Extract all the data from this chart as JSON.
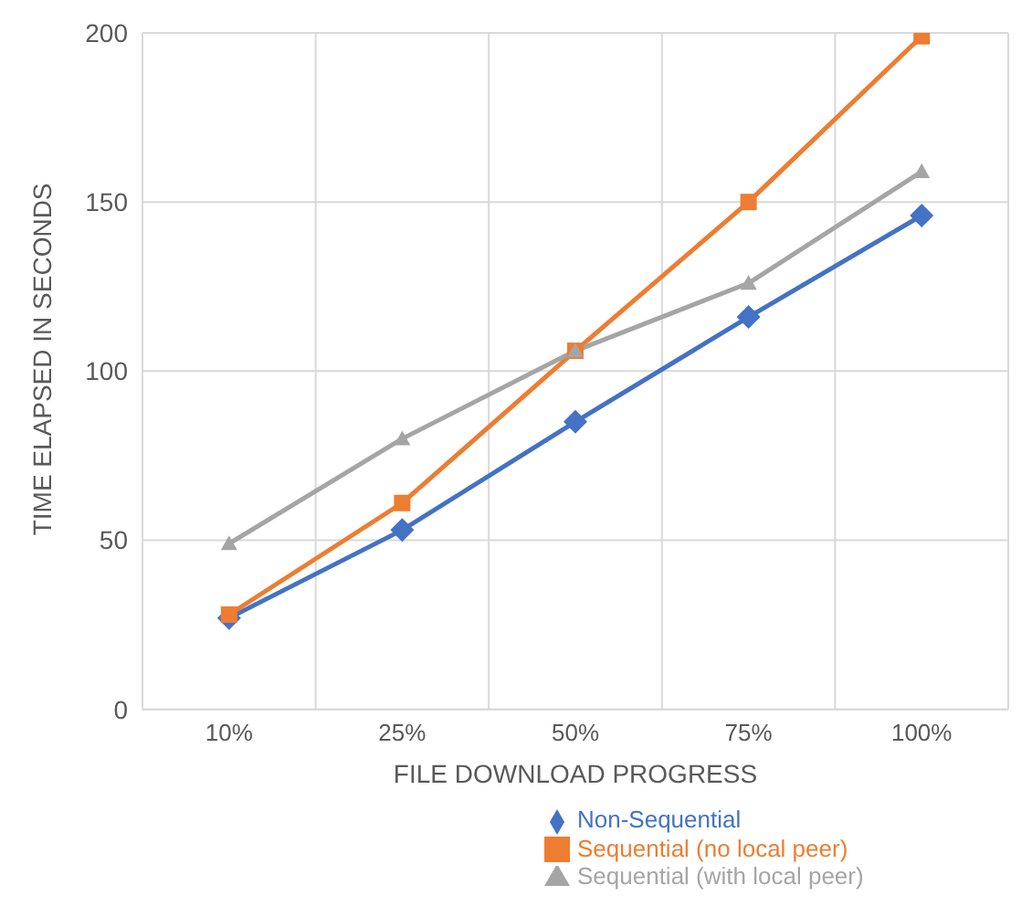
{
  "chart_data": {
    "type": "line",
    "xlabel": "FILE DOWNLOAD PROGRESS",
    "ylabel": "TIME ELAPSED IN SECONDS",
    "categories": [
      "10%",
      "25%",
      "50%",
      "75%",
      "100%"
    ],
    "series": [
      {
        "name": "Non-Sequential",
        "color": "#4472c4",
        "marker": "diamond",
        "values": [
          27,
          53,
          85,
          116,
          146
        ]
      },
      {
        "name": "Sequential (no local peer)",
        "color": "#ed7d31",
        "marker": "square",
        "values": [
          28,
          61,
          106,
          150,
          199
        ]
      },
      {
        "name": "Sequential (with local peer)",
        "color": "#a5a5a5",
        "marker": "triangle",
        "values": [
          49,
          80,
          106,
          126,
          159
        ]
      }
    ],
    "ylim": [
      0,
      200
    ],
    "yticks": [
      0,
      50,
      100,
      150,
      200
    ],
    "grid": true,
    "legend": "bottom right"
  }
}
